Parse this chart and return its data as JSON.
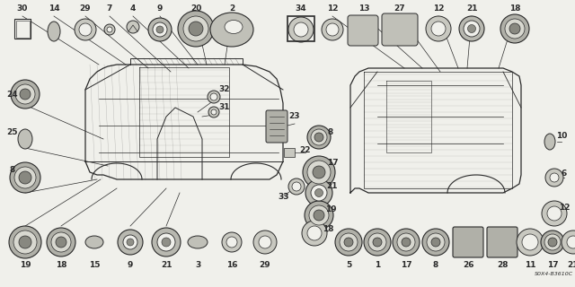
{
  "bg_color": "#f0f0eb",
  "line_color": "#2a2a2a",
  "diagram_code": "S0X4-B3610C",
  "figsize": [
    6.4,
    3.2
  ],
  "dpi": 100
}
